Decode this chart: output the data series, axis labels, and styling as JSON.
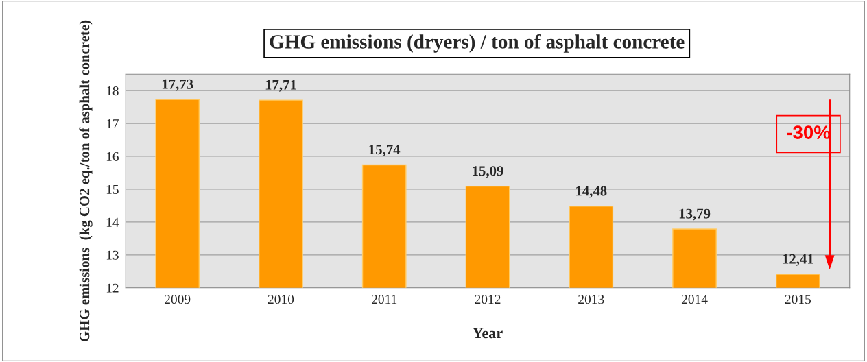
{
  "chart_data": {
    "type": "bar",
    "title": "GHG emissions (dryers) / ton of asphalt concrete",
    "xlabel": "Year",
    "ylabel": "GHG emissions  (kg CO2 eq./ton of asphalt concrete)",
    "categories": [
      "2009",
      "2010",
      "2011",
      "2012",
      "2013",
      "2014",
      "2015"
    ],
    "values": [
      17.73,
      17.71,
      15.74,
      15.09,
      14.48,
      13.79,
      12.41
    ],
    "value_labels": [
      "17,73",
      "17,71",
      "15,74",
      "15,09",
      "14,48",
      "13,79",
      "12,41"
    ],
    "color": "#ff9900",
    "ylim": [
      12,
      18.5
    ],
    "yticks": [
      12,
      13,
      14,
      15,
      16,
      17,
      18
    ],
    "grid": "y",
    "annotations": [
      "-30%"
    ]
  }
}
